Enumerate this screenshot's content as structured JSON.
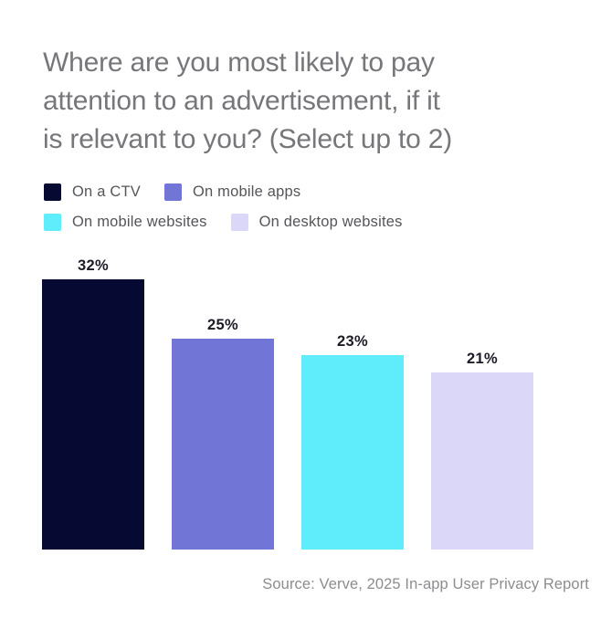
{
  "header": {
    "title": "Where are you most likely to pay attention to an advertisement, if it is relevant to you? (Select up to 2)",
    "title_lines": [
      "Where are you most likely to pay",
      "attention to an advertisement, if it",
      "is relevant to you? (Select up to 2)"
    ]
  },
  "chart_data": {
    "type": "bar",
    "title": "Where are you most likely to pay attention to an advertisement, if it is relevant to you? (Select up to 2)",
    "categories": [
      "On a CTV",
      "On mobile apps",
      "On mobile websites",
      "On desktop websites"
    ],
    "values": [
      32,
      25,
      23,
      21
    ],
    "value_labels": [
      "32%",
      "25%",
      "23%",
      "21%"
    ],
    "value_format": "percent",
    "colors": [
      "#060A33",
      "#7175D6",
      "#5FEDFB",
      "#DBD7F9"
    ],
    "legend": [
      "On a CTV",
      "On mobile apps",
      "On mobile websites",
      "On desktop websites"
    ],
    "legend_position": "top-left",
    "legend_rows": [
      [
        "On a CTV",
        "On mobile apps"
      ],
      [
        "On mobile websites",
        "On desktop websites"
      ]
    ],
    "xlabel": "",
    "ylabel": "",
    "ylim": [
      0,
      32
    ],
    "grid": false,
    "axes_visible": false
  },
  "footer": {
    "source": "Source: Verve, 2025 In-app User Privacy Report"
  },
  "colors": {
    "background": "#FFFFFF",
    "title_text": "#76767B",
    "legend_text": "#55555A",
    "bar_label_text": "#1C1C26",
    "source_text": "#8C8C91"
  }
}
